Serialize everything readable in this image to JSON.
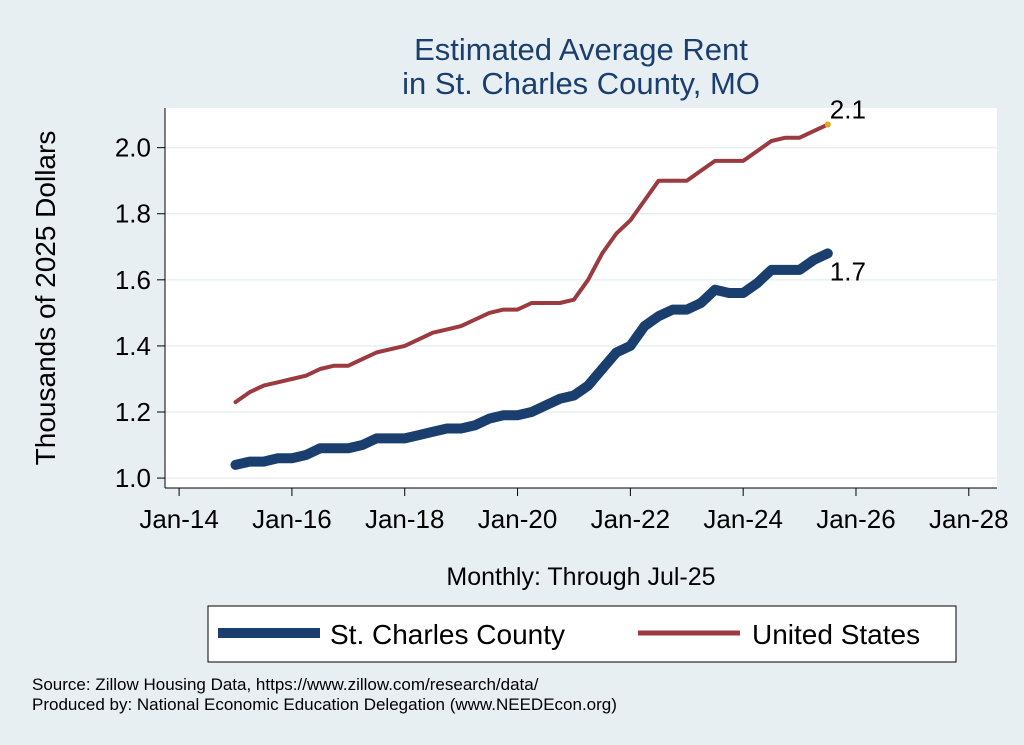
{
  "chart_data": {
    "type": "line",
    "title": [
      "Estimated Average Rent",
      "in St. Charles County, MO"
    ],
    "ylabel": "Thousands of 2025 Dollars",
    "xlabel": "Monthly: Through Jul-25",
    "ylim": [
      0.97,
      2.12
    ],
    "yticks": [
      1.0,
      1.2,
      1.4,
      1.6,
      1.8,
      2.0
    ],
    "ytick_labels": [
      "1.0",
      "1.2",
      "1.4",
      "1.6",
      "1.8",
      "2.0"
    ],
    "xlim": [
      "2013-10",
      "2028-07"
    ],
    "xticks": [
      "2014-01",
      "2016-01",
      "2018-01",
      "2020-01",
      "2022-01",
      "2024-01",
      "2026-01",
      "2028-01"
    ],
    "xtick_labels": [
      "Jan-14",
      "Jan-16",
      "Jan-18",
      "Jan-20",
      "Jan-22",
      "Jan-24",
      "Jan-26",
      "Jan-28"
    ],
    "grid": true,
    "legend_position": "bottom",
    "series": [
      {
        "name": "St. Charles County",
        "color": "#1a3f6e",
        "end_label": "1.7",
        "points": [
          [
            "2015-01",
            1.04
          ],
          [
            "2015-04",
            1.05
          ],
          [
            "2015-07",
            1.05
          ],
          [
            "2015-10",
            1.06
          ],
          [
            "2016-01",
            1.06
          ],
          [
            "2016-04",
            1.07
          ],
          [
            "2016-07",
            1.09
          ],
          [
            "2016-10",
            1.09
          ],
          [
            "2017-01",
            1.09
          ],
          [
            "2017-04",
            1.1
          ],
          [
            "2017-07",
            1.12
          ],
          [
            "2017-10",
            1.12
          ],
          [
            "2018-01",
            1.12
          ],
          [
            "2018-04",
            1.13
          ],
          [
            "2018-07",
            1.14
          ],
          [
            "2018-10",
            1.15
          ],
          [
            "2019-01",
            1.15
          ],
          [
            "2019-04",
            1.16
          ],
          [
            "2019-07",
            1.18
          ],
          [
            "2019-10",
            1.19
          ],
          [
            "2020-01",
            1.19
          ],
          [
            "2020-04",
            1.2
          ],
          [
            "2020-07",
            1.22
          ],
          [
            "2020-10",
            1.24
          ],
          [
            "2021-01",
            1.25
          ],
          [
            "2021-04",
            1.28
          ],
          [
            "2021-07",
            1.33
          ],
          [
            "2021-10",
            1.38
          ],
          [
            "2022-01",
            1.4
          ],
          [
            "2022-04",
            1.46
          ],
          [
            "2022-07",
            1.49
          ],
          [
            "2022-10",
            1.51
          ],
          [
            "2023-01",
            1.51
          ],
          [
            "2023-04",
            1.53
          ],
          [
            "2023-07",
            1.57
          ],
          [
            "2023-10",
            1.56
          ],
          [
            "2024-01",
            1.56
          ],
          [
            "2024-04",
            1.59
          ],
          [
            "2024-07",
            1.63
          ],
          [
            "2024-10",
            1.63
          ],
          [
            "2025-01",
            1.63
          ],
          [
            "2025-04",
            1.66
          ],
          [
            "2025-07",
            1.68
          ]
        ]
      },
      {
        "name": "United States",
        "color": "#9b3a3f",
        "end_label": "2.1",
        "points": [
          [
            "2015-01",
            1.23
          ],
          [
            "2015-04",
            1.26
          ],
          [
            "2015-07",
            1.28
          ],
          [
            "2015-10",
            1.29
          ],
          [
            "2016-01",
            1.3
          ],
          [
            "2016-04",
            1.31
          ],
          [
            "2016-07",
            1.33
          ],
          [
            "2016-10",
            1.34
          ],
          [
            "2017-01",
            1.34
          ],
          [
            "2017-04",
            1.36
          ],
          [
            "2017-07",
            1.38
          ],
          [
            "2017-10",
            1.39
          ],
          [
            "2018-01",
            1.4
          ],
          [
            "2018-04",
            1.42
          ],
          [
            "2018-07",
            1.44
          ],
          [
            "2018-10",
            1.45
          ],
          [
            "2019-01",
            1.46
          ],
          [
            "2019-04",
            1.48
          ],
          [
            "2019-07",
            1.5
          ],
          [
            "2019-10",
            1.51
          ],
          [
            "2020-01",
            1.51
          ],
          [
            "2020-04",
            1.53
          ],
          [
            "2020-07",
            1.53
          ],
          [
            "2020-10",
            1.53
          ],
          [
            "2021-01",
            1.54
          ],
          [
            "2021-04",
            1.6
          ],
          [
            "2021-07",
            1.68
          ],
          [
            "2021-10",
            1.74
          ],
          [
            "2022-01",
            1.78
          ],
          [
            "2022-04",
            1.84
          ],
          [
            "2022-07",
            1.9
          ],
          [
            "2022-10",
            1.9
          ],
          [
            "2023-01",
            1.9
          ],
          [
            "2023-04",
            1.93
          ],
          [
            "2023-07",
            1.96
          ],
          [
            "2023-10",
            1.96
          ],
          [
            "2024-01",
            1.96
          ],
          [
            "2024-04",
            1.99
          ],
          [
            "2024-07",
            2.02
          ],
          [
            "2024-10",
            2.03
          ],
          [
            "2025-01",
            2.03
          ],
          [
            "2025-04",
            2.05
          ],
          [
            "2025-07",
            2.07
          ]
        ]
      }
    ]
  },
  "source_lines": [
    "Source: Zillow Housing Data, https://www.zillow.com/research/data/",
    "Produced by: National Economic Education Delegation (www.NEEDEcon.org)"
  ]
}
